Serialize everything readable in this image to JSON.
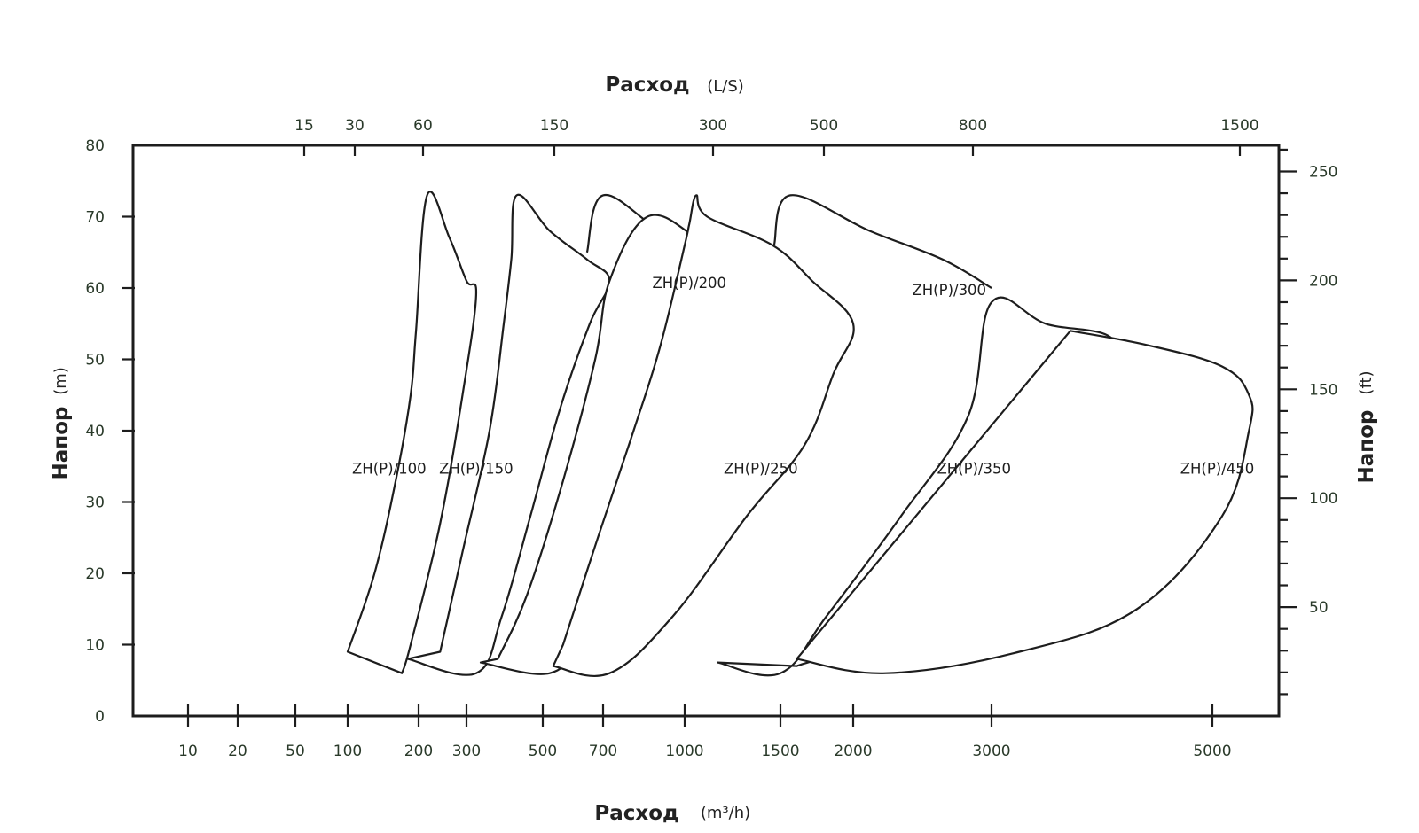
{
  "chart_data": {
    "type": "area",
    "title": "",
    "axes": {
      "x_bottom": {
        "label": "Расход",
        "unit": "(m³/h)",
        "scale": "log",
        "ticks": [
          10,
          20,
          50,
          100,
          200,
          300,
          500,
          700,
          1000,
          1500,
          2000,
          3000,
          5000
        ]
      },
      "x_top": {
        "label": "Расход",
        "unit": "(L/S)",
        "scale": "log",
        "ticks": [
          15,
          30,
          60,
          150,
          300,
          500,
          800,
          1500
        ]
      },
      "y_left": {
        "label": "Напор",
        "unit": "(m)",
        "range": [
          0,
          80
        ],
        "ticks": [
          0,
          10,
          20,
          30,
          40,
          50,
          60,
          70,
          80
        ]
      },
      "y_right": {
        "label": "Напор",
        "unit": "(ft)",
        "range": [
          0,
          262
        ],
        "ticks": [
          50,
          100,
          150,
          200,
          250
        ]
      }
    },
    "series": [
      {
        "name": "ZH(P)/100",
        "outline": [
          {
            "flow": 100,
            "head": 9
          },
          {
            "flow": 130,
            "head": 20
          },
          {
            "flow": 160,
            "head": 33
          },
          {
            "flow": 185,
            "head": 45
          },
          {
            "flow": 195,
            "head": 54
          },
          {
            "flow": 215,
            "head": 73
          },
          {
            "flow": 260,
            "head": 67
          },
          {
            "flow": 300,
            "head": 61
          },
          {
            "flow": 320,
            "head": 59
          },
          {
            "flow": 290,
            "head": 45
          },
          {
            "flow": 240,
            "head": 27
          },
          {
            "flow": 185,
            "head": 10
          },
          {
            "flow": 170,
            "head": 6
          }
        ]
      },
      {
        "name": "ZH(P)/150",
        "outline": [
          {
            "flow": 180,
            "head": 8
          },
          {
            "flow": 320,
            "head": 6
          },
          {
            "flow": 380,
            "head": 14
          },
          {
            "flow": 460,
            "head": 28
          },
          {
            "flow": 550,
            "head": 43
          },
          {
            "flow": 650,
            "head": 55
          },
          {
            "flow": 720,
            "head": 61
          },
          {
            "flow": 640,
            "head": 64
          },
          {
            "flow": 520,
            "head": 68
          },
          {
            "flow": 420,
            "head": 73
          },
          {
            "flow": 405,
            "head": 64
          },
          {
            "flow": 385,
            "head": 55
          },
          {
            "flow": 350,
            "head": 40
          },
          {
            "flow": 290,
            "head": 23
          },
          {
            "flow": 240,
            "head": 9
          }
        ]
      },
      {
        "name": "ZH(P)/200",
        "outline": [
          {
            "flow": 640,
            "head": 65
          },
          {
            "flow": 700,
            "head": 73
          },
          {
            "flow": 900,
            "head": 68
          },
          {
            "flow": 1200,
            "head": 63
          }
        ]
      },
      {
        "name": "ZH(P)/250",
        "outline": [
          {
            "flow": 330,
            "head": 7.5
          },
          {
            "flow": 520,
            "head": 6
          },
          {
            "flow": 620,
            "head": 11
          },
          {
            "flow": 780,
            "head": 22
          },
          {
            "flow": 950,
            "head": 36
          },
          {
            "flow": 1100,
            "head": 48
          },
          {
            "flow": 1200,
            "head": 63
          },
          {
            "flow": 1050,
            "head": 67
          },
          {
            "flow": 850,
            "head": 70
          },
          {
            "flow": 720,
            "head": 61
          },
          {
            "flow": 670,
            "head": 50
          },
          {
            "flow": 560,
            "head": 33
          },
          {
            "flow": 450,
            "head": 17
          },
          {
            "flow": 370,
            "head": 8
          }
        ]
      },
      {
        "name": "ZH(P)/300",
        "outline": [
          {
            "flow": 1460,
            "head": 66
          },
          {
            "flow": 1560,
            "head": 73
          },
          {
            "flow": 2100,
            "head": 68
          },
          {
            "flow": 2600,
            "head": 64
          },
          {
            "flow": 3000,
            "head": 60
          }
        ]
      },
      {
        "name": "ZH(P)/350",
        "outline": [
          {
            "flow": 530,
            "head": 7
          },
          {
            "flow": 720,
            "head": 6
          },
          {
            "flow": 950,
            "head": 14
          },
          {
            "flow": 1300,
            "head": 28
          },
          {
            "flow": 1650,
            "head": 38
          },
          {
            "flow": 1850,
            "head": 48
          },
          {
            "flow": 2000,
            "head": 55
          },
          {
            "flow": 1700,
            "head": 61
          },
          {
            "flow": 1450,
            "head": 66
          },
          {
            "flow": 1100,
            "head": 70
          },
          {
            "flow": 1050,
            "head": 73
          },
          {
            "flow": 1020,
            "head": 69
          },
          {
            "flow": 1000,
            "head": 66
          },
          {
            "flow": 900,
            "head": 52
          },
          {
            "flow": 800,
            "head": 40
          },
          {
            "flow": 680,
            "head": 25
          },
          {
            "flow": 560,
            "head": 10
          }
        ]
      },
      {
        "name": "ZH(P)/450",
        "outline": [
          {
            "flow": 1150,
            "head": 7.5
          },
          {
            "flow": 1500,
            "head": 6
          },
          {
            "flow": 1800,
            "head": 14
          },
          {
            "flow": 2300,
            "head": 28
          },
          {
            "flow": 2800,
            "head": 42
          },
          {
            "flow": 3000,
            "head": 58
          },
          {
            "flow": 3400,
            "head": 55
          },
          {
            "flow": 4000,
            "head": 52
          },
          {
            "flow": 3600,
            "head": 40
          },
          {
            "flow": 2900,
            "head": 25
          },
          {
            "flow": 2200,
            "head": 12
          },
          {
            "flow": 1600,
            "head": 7
          }
        ]
      },
      {
        "name": "ZH(P)/450",
        "outline": [
          {
            "flow": 1600,
            "head": 8
          },
          {
            "flow": 2200,
            "head": 6
          },
          {
            "flow": 3200,
            "head": 9
          },
          {
            "flow": 4200,
            "head": 15
          },
          {
            "flow": 5200,
            "head": 28
          },
          {
            "flow": 5800,
            "head": 40
          },
          {
            "flow": 5800,
            "head": 45
          },
          {
            "flow": 5200,
            "head": 49
          },
          {
            "flow": 4300,
            "head": 52
          },
          {
            "flow": 3600,
            "head": 54
          }
        ]
      }
    ],
    "labels": [
      {
        "text": "ZH(P)/100",
        "flow": 150,
        "head": 34
      },
      {
        "text": "ZH(P)/150",
        "flow": 320,
        "head": 34
      },
      {
        "text": "ZH(P)/200",
        "flow": 1020,
        "head": 60
      },
      {
        "text": "ZH(P)/250",
        "flow": 1380,
        "head": 34
      },
      {
        "text": "ZH(P)/300",
        "flow": 2650,
        "head": 59
      },
      {
        "text": "ZH(P)/350",
        "flow": 2850,
        "head": 34
      },
      {
        "text": "ZH(P)/450",
        "flow": 5100,
        "head": 34
      }
    ],
    "grid": false,
    "legend": "none"
  }
}
